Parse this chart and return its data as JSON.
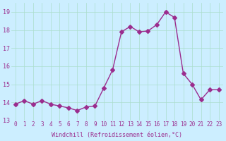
{
  "x": [
    0,
    1,
    2,
    3,
    4,
    5,
    6,
    7,
    8,
    9,
    10,
    11,
    12,
    13,
    14,
    15,
    16,
    17,
    18,
    19,
    20,
    21,
    22,
    23
  ],
  "y": [
    13.9,
    14.1,
    13.9,
    14.1,
    13.9,
    13.8,
    13.7,
    13.55,
    13.75,
    13.8,
    14.8,
    15.8,
    17.9,
    18.2,
    17.9,
    17.95,
    18.3,
    19.0,
    18.7,
    15.6,
    15.0,
    14.15,
    14.7,
    14.7
  ],
  "line_color": "#9b2d8e",
  "marker": "D",
  "marker_size": 3,
  "bg_color": "#cceeff",
  "grid_color": "#aaddcc",
  "xlabel": "Windchill (Refroidissement éolien,°C)",
  "xlabel_color": "#9b2d8e",
  "tick_color": "#9b2d8e",
  "ylim": [
    13.0,
    19.5
  ],
  "xlim": [
    -0.5,
    23.5
  ],
  "yticks": [
    13,
    14,
    15,
    16,
    17,
    18,
    19
  ],
  "xticks": [
    0,
    1,
    2,
    3,
    4,
    5,
    6,
    7,
    8,
    9,
    10,
    11,
    12,
    13,
    14,
    15,
    16,
    17,
    18,
    19,
    20,
    21,
    22,
    23
  ]
}
